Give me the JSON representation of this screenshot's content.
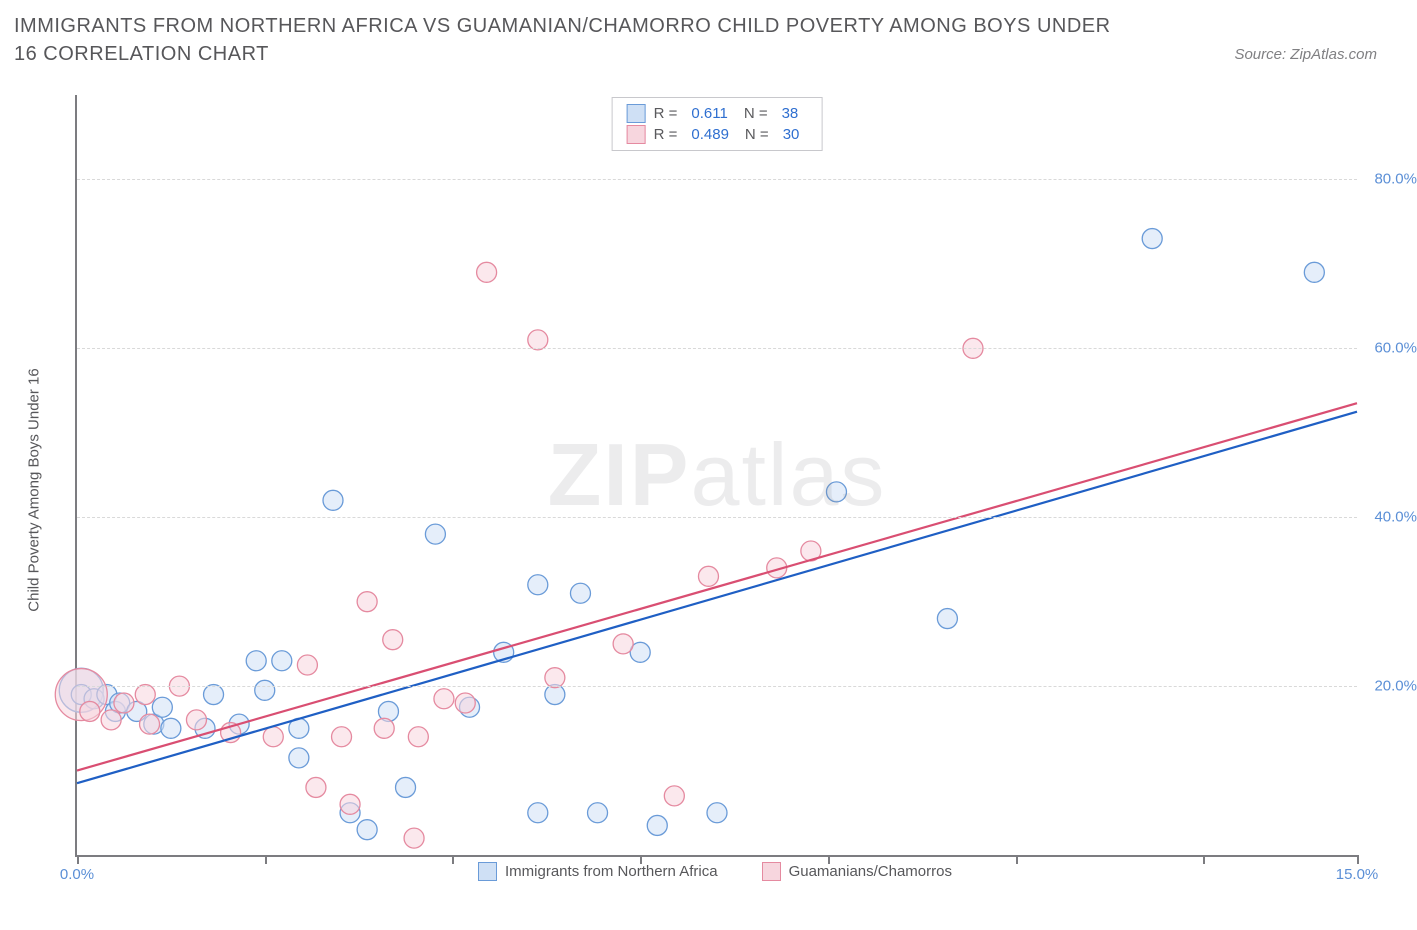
{
  "title": "IMMIGRANTS FROM NORTHERN AFRICA VS GUAMANIAN/CHAMORRO CHILD POVERTY AMONG BOYS UNDER 16 CORRELATION CHART",
  "source": "Source: ZipAtlas.com",
  "watermark_bold": "ZIP",
  "watermark_light": "atlas",
  "y_axis_label": "Child Poverty Among Boys Under 16",
  "chart": {
    "type": "scatter",
    "xlim": [
      0,
      15
    ],
    "ylim": [
      0,
      90
    ],
    "x_ticks": [
      0.0,
      2.2,
      4.4,
      6.6,
      8.8,
      11.0,
      13.2,
      15.0
    ],
    "x_tick_labels": [
      "0.0%",
      "",
      "",
      "",
      "",
      "",
      "",
      "15.0%"
    ],
    "y_gridlines": [
      20,
      40,
      60,
      80
    ],
    "y_tick_labels": [
      "20.0%",
      "40.0%",
      "60.0%",
      "80.0%"
    ],
    "background_color": "#ffffff",
    "grid_color": "#d9d9d9",
    "axis_color": "#7c7c80",
    "label_color": "#5b8fd6",
    "marker_radius": 10,
    "marker_stroke_width": 1.3,
    "trend_line_width": 2.2,
    "series": [
      {
        "name": "Immigrants from Northern Africa",
        "fill": "#cfe0f5",
        "stroke": "#6a9bd8",
        "fill_opacity": 0.55,
        "trend_color": "#1f5fc4",
        "trend": {
          "x1": 0,
          "y1": 8.5,
          "x2": 15,
          "y2": 52.5
        },
        "points": [
          {
            "x": 0.05,
            "y": 19.5,
            "r": 22
          },
          {
            "x": 0.05,
            "y": 19
          },
          {
            "x": 0.2,
            "y": 18.5
          },
          {
            "x": 0.35,
            "y": 19
          },
          {
            "x": 0.45,
            "y": 17
          },
          {
            "x": 0.5,
            "y": 18
          },
          {
            "x": 0.7,
            "y": 17
          },
          {
            "x": 0.9,
            "y": 15.5
          },
          {
            "x": 1.0,
            "y": 17.5
          },
          {
            "x": 1.1,
            "y": 15
          },
          {
            "x": 1.5,
            "y": 15
          },
          {
            "x": 1.6,
            "y": 19
          },
          {
            "x": 1.9,
            "y": 15.5
          },
          {
            "x": 2.1,
            "y": 23
          },
          {
            "x": 2.2,
            "y": 19.5
          },
          {
            "x": 2.4,
            "y": 23
          },
          {
            "x": 2.6,
            "y": 15
          },
          {
            "x": 2.6,
            "y": 11.5
          },
          {
            "x": 3.0,
            "y": 42
          },
          {
            "x": 3.2,
            "y": 5
          },
          {
            "x": 3.4,
            "y": 3
          },
          {
            "x": 3.65,
            "y": 17
          },
          {
            "x": 3.85,
            "y": 8
          },
          {
            "x": 4.2,
            "y": 38
          },
          {
            "x": 4.6,
            "y": 17.5
          },
          {
            "x": 5.0,
            "y": 24
          },
          {
            "x": 5.4,
            "y": 32
          },
          {
            "x": 5.4,
            "y": 5
          },
          {
            "x": 5.6,
            "y": 19
          },
          {
            "x": 5.9,
            "y": 31
          },
          {
            "x": 6.1,
            "y": 5
          },
          {
            "x": 6.6,
            "y": 24
          },
          {
            "x": 6.8,
            "y": 3.5
          },
          {
            "x": 7.5,
            "y": 5
          },
          {
            "x": 8.9,
            "y": 43
          },
          {
            "x": 10.2,
            "y": 28
          },
          {
            "x": 12.6,
            "y": 73
          },
          {
            "x": 14.5,
            "y": 69
          }
        ]
      },
      {
        "name": "Guamanians/Chamorros",
        "fill": "#f7d6de",
        "stroke": "#e58aa0",
        "fill_opacity": 0.55,
        "trend_color": "#d94e72",
        "trend": {
          "x1": 0,
          "y1": 10,
          "x2": 15,
          "y2": 53.5
        },
        "points": [
          {
            "x": 0.05,
            "y": 19,
            "r": 26
          },
          {
            "x": 0.15,
            "y": 17
          },
          {
            "x": 0.4,
            "y": 16
          },
          {
            "x": 0.55,
            "y": 18
          },
          {
            "x": 0.8,
            "y": 19
          },
          {
            "x": 0.85,
            "y": 15.5
          },
          {
            "x": 1.2,
            "y": 20
          },
          {
            "x": 1.4,
            "y": 16
          },
          {
            "x": 1.8,
            "y": 14.5
          },
          {
            "x": 2.3,
            "y": 14
          },
          {
            "x": 2.7,
            "y": 22.5
          },
          {
            "x": 2.8,
            "y": 8
          },
          {
            "x": 3.1,
            "y": 14
          },
          {
            "x": 3.2,
            "y": 6
          },
          {
            "x": 3.4,
            "y": 30
          },
          {
            "x": 3.6,
            "y": 15
          },
          {
            "x": 3.7,
            "y": 25.5
          },
          {
            "x": 3.95,
            "y": 2
          },
          {
            "x": 4.0,
            "y": 14
          },
          {
            "x": 4.3,
            "y": 18.5
          },
          {
            "x": 4.55,
            "y": 18
          },
          {
            "x": 4.8,
            "y": 69
          },
          {
            "x": 5.4,
            "y": 61
          },
          {
            "x": 5.6,
            "y": 21
          },
          {
            "x": 6.4,
            "y": 25
          },
          {
            "x": 7.0,
            "y": 7
          },
          {
            "x": 7.4,
            "y": 33
          },
          {
            "x": 8.2,
            "y": 34
          },
          {
            "x": 8.6,
            "y": 36
          },
          {
            "x": 10.5,
            "y": 60
          }
        ]
      }
    ]
  },
  "legend_top": {
    "rows": [
      {
        "swatch_fill": "#cfe0f5",
        "swatch_stroke": "#6a9bd8",
        "r_label": "R =",
        "r_value": "0.611",
        "n_label": "N =",
        "n_value": "38"
      },
      {
        "swatch_fill": "#f7d6de",
        "swatch_stroke": "#e58aa0",
        "r_label": "R =",
        "r_value": "0.489",
        "n_label": "N =",
        "n_value": "30"
      }
    ]
  },
  "legend_bottom": {
    "items": [
      {
        "swatch_fill": "#cfe0f5",
        "swatch_stroke": "#6a9bd8",
        "label": "Immigrants from Northern Africa"
      },
      {
        "swatch_fill": "#f7d6de",
        "swatch_stroke": "#e58aa0",
        "label": "Guamanians/Chamorros"
      }
    ]
  }
}
